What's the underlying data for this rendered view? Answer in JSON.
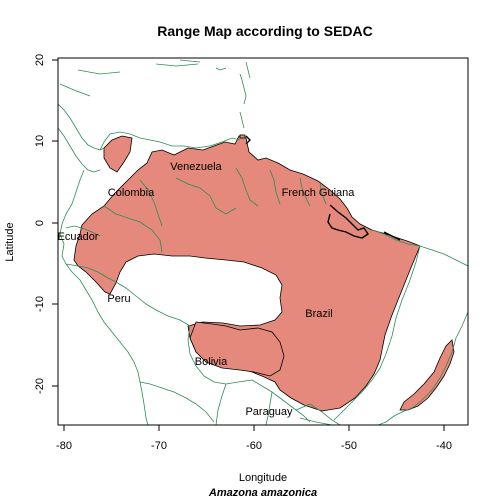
{
  "title": "Range Map according to SEDAC",
  "xlabel": "Longitude",
  "ylabel": "Latitude",
  "species": "Amazona amazonica",
  "colors": {
    "range_fill": "#e4897b",
    "range_stroke": "#000000",
    "border": "#2e8b57",
    "frame": "#000000"
  },
  "map": {
    "x_ticks": [
      "-80",
      "-70",
      "-60",
      "-50",
      "-40"
    ],
    "y_ticks": [
      "20",
      "10",
      "0",
      "-10",
      "-20"
    ],
    "countries": [
      {
        "name": "Venezuela"
      },
      {
        "name": "Colombia"
      },
      {
        "name": "French Guiana"
      },
      {
        "name": "Ecuador"
      },
      {
        "name": "Peru"
      },
      {
        "name": "Brazil"
      },
      {
        "name": "Bolivia"
      },
      {
        "name": "Paraguay"
      }
    ]
  }
}
